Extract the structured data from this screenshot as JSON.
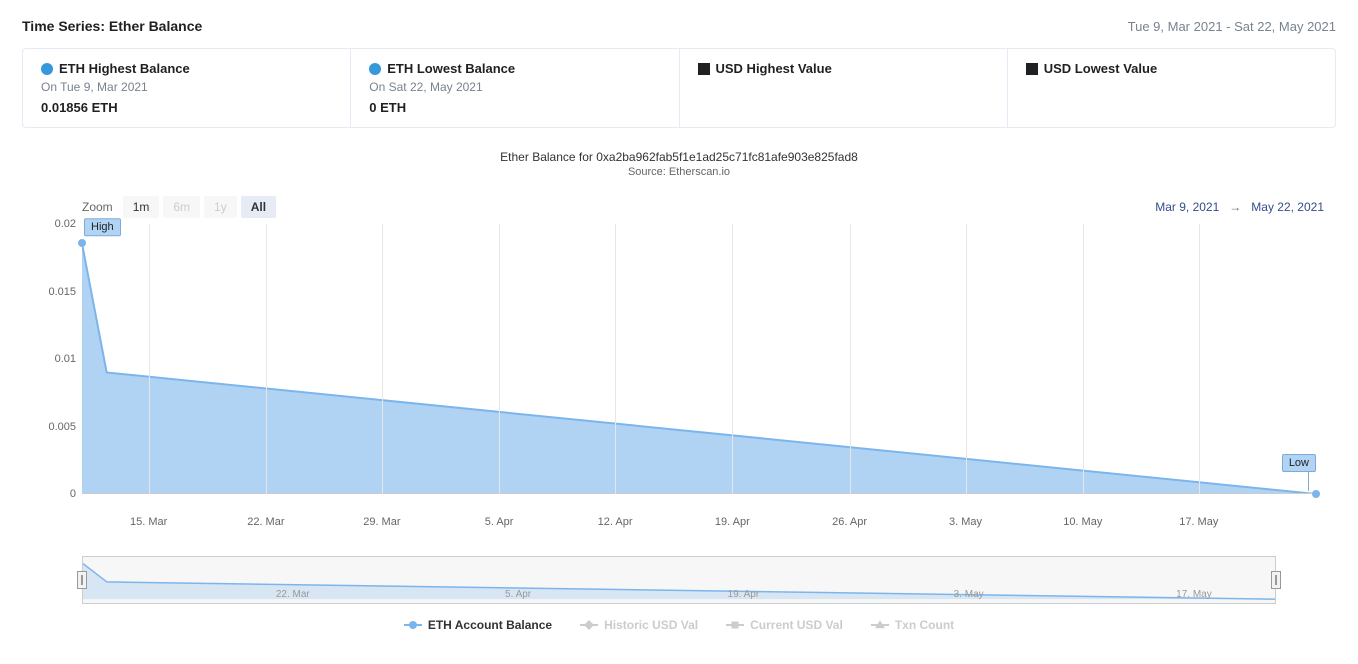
{
  "header": {
    "title": "Time Series: Ether Balance",
    "range": "Tue 9, Mar 2021 - Sat 22, May 2021"
  },
  "stat_cards": [
    {
      "marker": "dot",
      "marker_color": "#3498db",
      "label": "ETH Highest Balance",
      "date": "On Tue 9, Mar 2021",
      "value": "0.01856 ETH"
    },
    {
      "marker": "dot",
      "marker_color": "#3498db",
      "label": "ETH Lowest Balance",
      "date": "On Sat 22, May 2021",
      "value": "0 ETH"
    },
    {
      "marker": "square",
      "marker_color": "#1e2022",
      "label": "USD Highest Value",
      "date": "",
      "value": ""
    },
    {
      "marker": "square",
      "marker_color": "#1e2022",
      "label": "USD Lowest Value",
      "date": "",
      "value": ""
    }
  ],
  "chart_meta": {
    "title": "Ether Balance for 0xa2ba962fab5f1e1ad25c71fc81afe903e825fad8",
    "source": "Source: Etherscan.io"
  },
  "zoom": {
    "label": "Zoom",
    "buttons": [
      {
        "text": "1m",
        "state": "normal"
      },
      {
        "text": "6m",
        "state": "disabled"
      },
      {
        "text": "1y",
        "state": "disabled"
      },
      {
        "text": "All",
        "state": "active"
      }
    ]
  },
  "range_inputs": {
    "from": "Mar 9, 2021",
    "arrow": "→",
    "to": "May 22, 2021"
  },
  "chart": {
    "type": "area",
    "series_color": "#7cb5ec",
    "fill_color": "rgba(124,181,236,0.6)",
    "marker_radius": 4,
    "ylim": [
      0,
      0.02
    ],
    "yticks": [
      0,
      0.005,
      0.01,
      0.015,
      0.02
    ],
    "ytick_labels": [
      "0",
      "0.005",
      "0.01",
      "0.015",
      "0.02"
    ],
    "data": [
      {
        "t": 0.0,
        "v": 0.01856
      },
      {
        "t": 0.02,
        "v": 0.009
      },
      {
        "t": 1.0,
        "v": 0.0
      }
    ],
    "x_grid": [
      0.054,
      0.149,
      0.243,
      0.338,
      0.432,
      0.527,
      0.622,
      0.716,
      0.811,
      0.905
    ],
    "x_labels": [
      {
        "t": 0.054,
        "text": "15. Mar"
      },
      {
        "t": 0.149,
        "text": "22. Mar"
      },
      {
        "t": 0.243,
        "text": "29. Mar"
      },
      {
        "t": 0.338,
        "text": "5. Apr"
      },
      {
        "t": 0.432,
        "text": "12. Apr"
      },
      {
        "t": 0.527,
        "text": "19. Apr"
      },
      {
        "t": 0.622,
        "text": "26. Apr"
      },
      {
        "t": 0.716,
        "text": "3. May"
      },
      {
        "t": 0.811,
        "text": "10. May"
      },
      {
        "t": 0.905,
        "text": "17. May"
      }
    ],
    "flags": {
      "high": {
        "label": "High",
        "t": 0.0,
        "v": 0.01856
      },
      "low": {
        "label": "Low",
        "t": 1.0,
        "v": 0.0
      }
    },
    "background_color": "#ffffff",
    "grid_color": "#e6e6e6",
    "axis_color": "#cccccc",
    "label_color": "#666666",
    "label_fontsize": 11
  },
  "navigator": {
    "line_color": "#7cb5ec",
    "fill_color": "rgba(124,181,236,0.25)",
    "background": "#f7f7f7",
    "labels": [
      {
        "t": 0.176,
        "text": "22. Mar"
      },
      {
        "t": 0.365,
        "text": "5. Apr"
      },
      {
        "t": 0.554,
        "text": "19. Apr"
      },
      {
        "t": 0.743,
        "text": "3. May"
      },
      {
        "t": 0.932,
        "text": "17. May"
      }
    ]
  },
  "legend": [
    {
      "label": "ETH Account Balance",
      "state": "active",
      "marker": "dot",
      "color": "#7cb5ec"
    },
    {
      "label": "Historic USD Val",
      "state": "inactive",
      "marker": "diamond",
      "color": "#cccccc"
    },
    {
      "label": "Current USD Val",
      "state": "inactive",
      "marker": "square",
      "color": "#cccccc"
    },
    {
      "label": "Txn Count",
      "state": "inactive",
      "marker": "triangle",
      "color": "#cccccc"
    }
  ]
}
